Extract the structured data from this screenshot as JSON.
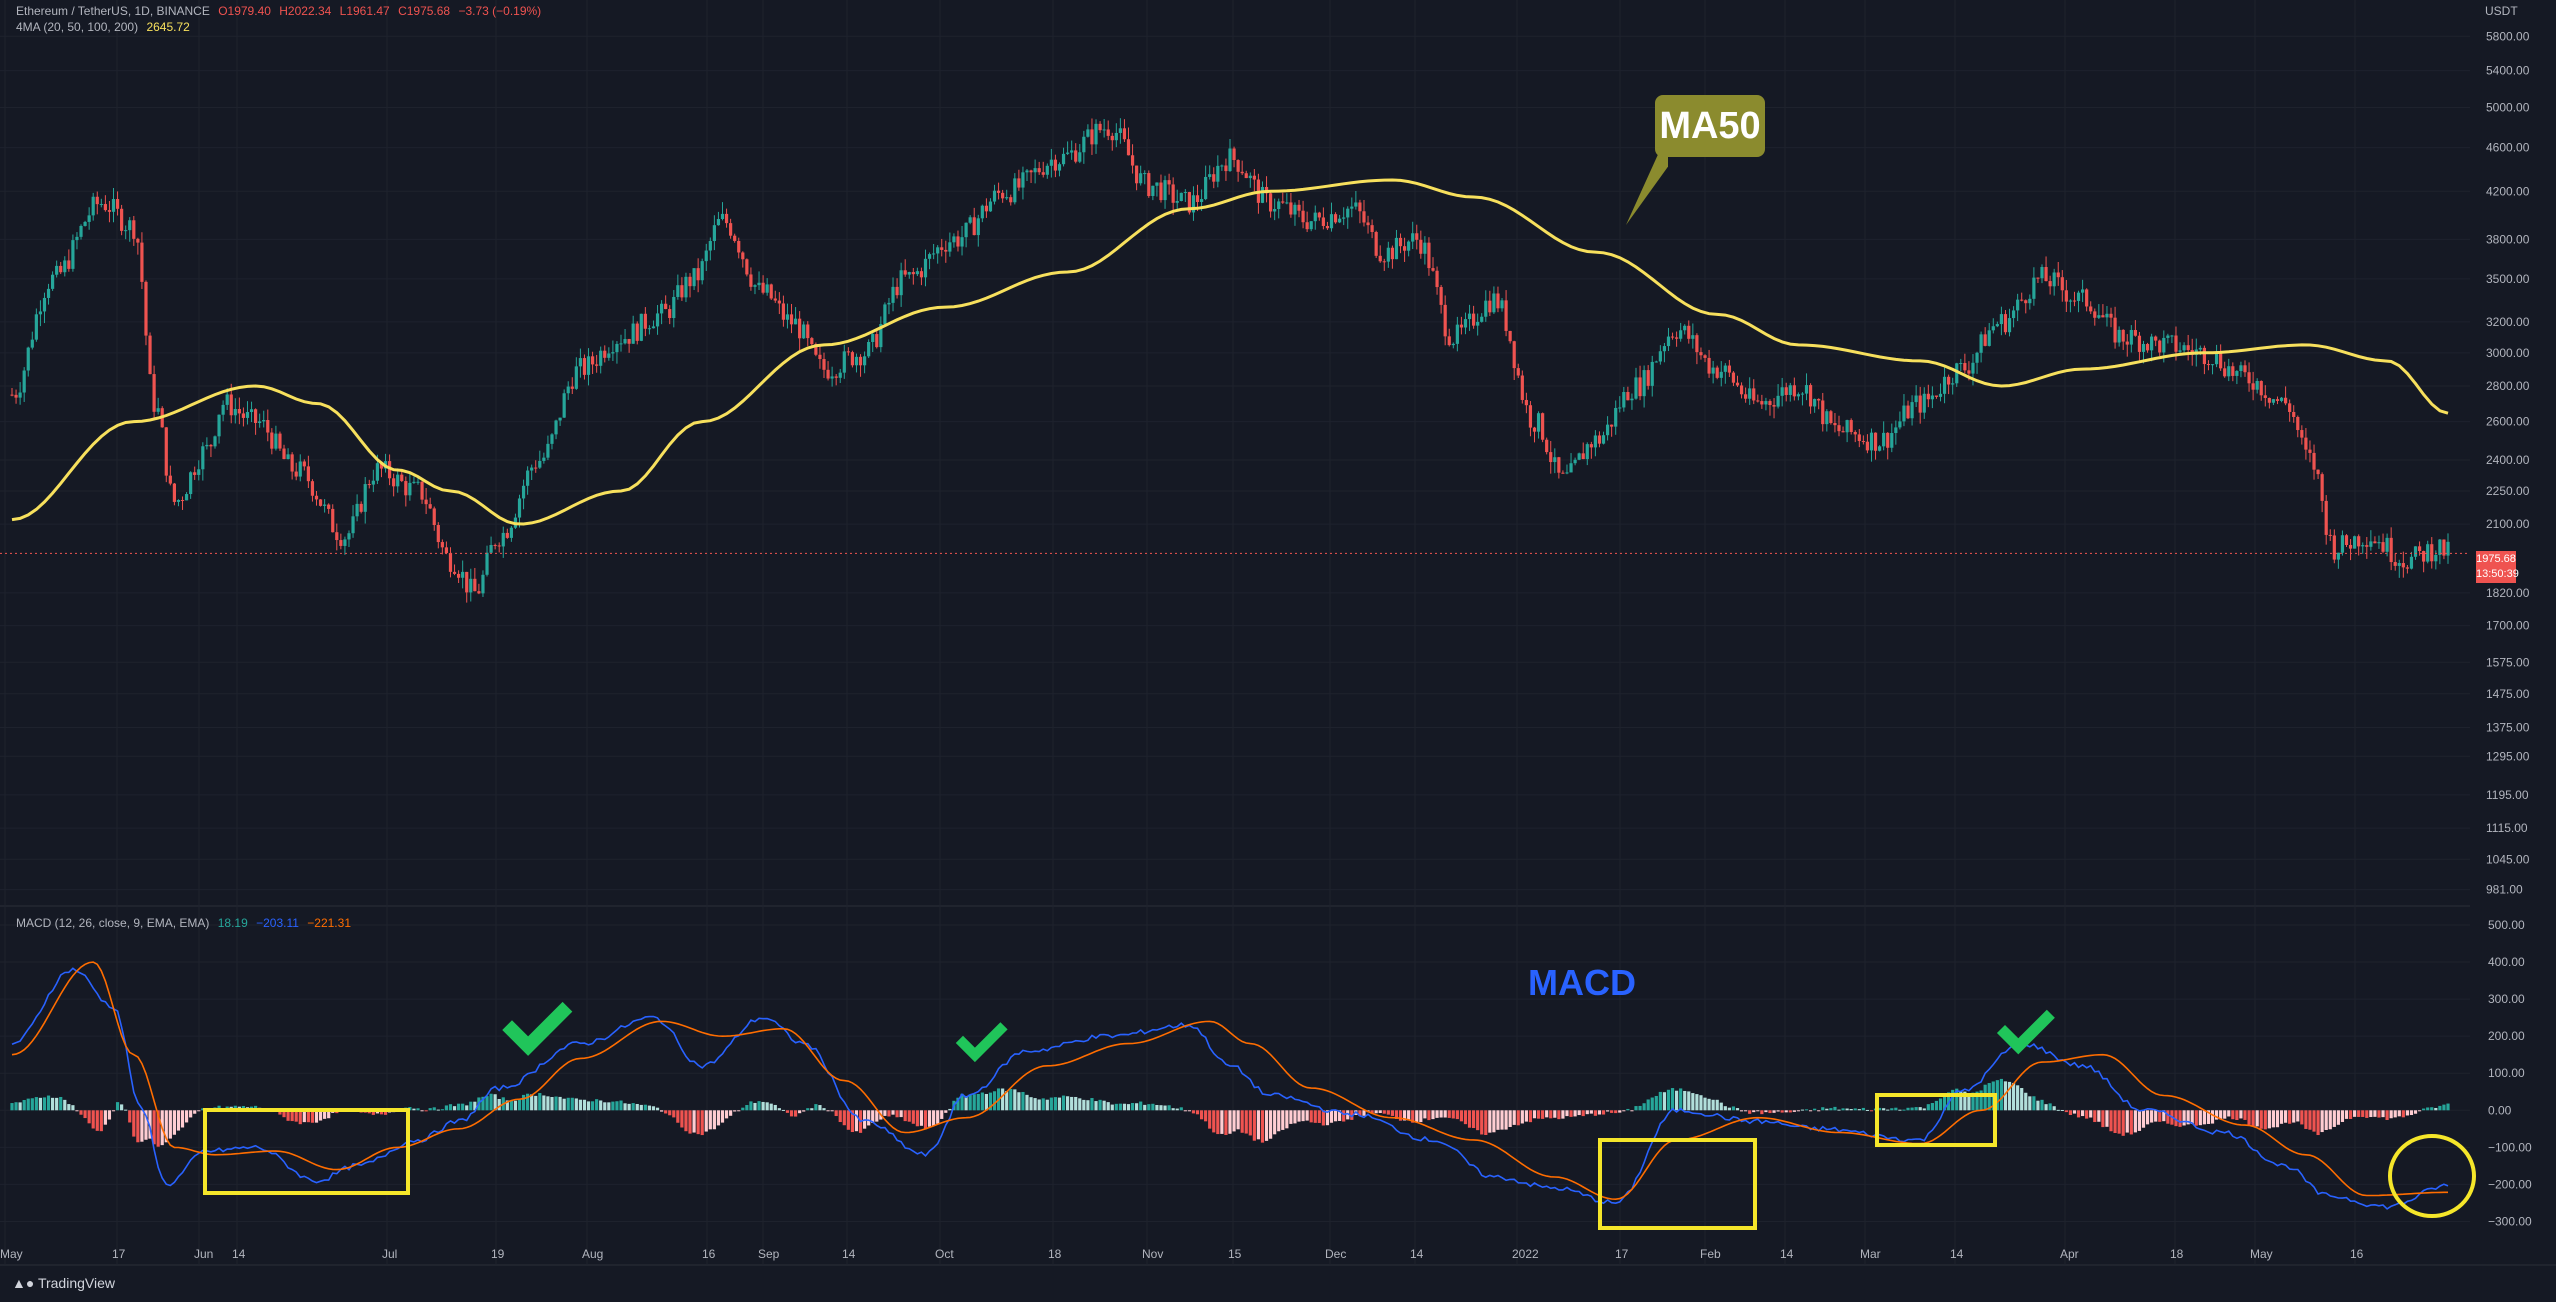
{
  "header": {
    "symbol": "Ethereum / TetherUS, 1D, BINANCE",
    "open": "O1979.40",
    "high": "H2022.34",
    "low": "L1961.47",
    "close": "C1975.68",
    "change": "−3.73 (−0.19%)",
    "ma_label": "4MA (20, 50, 100, 200)",
    "ma_value": "2645.72"
  },
  "macd_header": {
    "label": "MACD (12, 26, close, 9, EMA, EMA)",
    "hist": "18.19",
    "macd": "−203.11",
    "signal": "−221.31"
  },
  "annotations": {
    "ma50": "MA50",
    "macd": "MACD"
  },
  "price_tag": {
    "price": "1975.68",
    "countdown": "13:50:39"
  },
  "currency": "USDT",
  "brand": "TradingView",
  "colors": {
    "bg": "#151924",
    "up": "#26a69a",
    "down": "#ef5350",
    "ma": "#f7e05d",
    "macd": "#2962ff",
    "signal": "#ff6d00",
    "highlight": "#f5e62a",
    "check": "#20c55a"
  },
  "chart_data": [
    {
      "type": "candlestick",
      "title": "Ethereum / TetherUS, 1D, BINANCE",
      "scale": "log",
      "ylim": [
        960,
        6000
      ],
      "y_ticks": [
        "5800.00",
        "5400.00",
        "5000.00",
        "4600.00",
        "4200.00",
        "3800.00",
        "3500.00",
        "3200.00",
        "3000.00",
        "2800.00",
        "2600.00",
        "2400.00",
        "2250.00",
        "2100.00",
        "1820.00",
        "1700.00",
        "1575.00",
        "1475.00",
        "1375.00",
        "1295.00",
        "1195.00",
        "1115.00",
        "1045.00",
        "981.00"
      ],
      "x_ticks": [
        "May",
        "17",
        "Jun",
        "14",
        "Jul",
        "19",
        "Aug",
        "16",
        "Sep",
        "14",
        "Oct",
        "18",
        "Nov",
        "15",
        "Dec",
        "14",
        "2022",
        "17",
        "Feb",
        "14",
        "Mar",
        "14",
        "Apr",
        "18",
        "May",
        "16"
      ],
      "close_anchors": [
        [
          0,
          2750
        ],
        [
          10,
          3500
        ],
        [
          22,
          4100
        ],
        [
          30,
          3900
        ],
        [
          35,
          2700
        ],
        [
          40,
          2200
        ],
        [
          48,
          2450
        ],
        [
          52,
          2700
        ],
        [
          60,
          2600
        ],
        [
          70,
          2350
        ],
        [
          82,
          2050
        ],
        [
          90,
          2350
        ],
        [
          100,
          2250
        ],
        [
          108,
          1950
        ],
        [
          114,
          1820
        ],
        [
          120,
          2050
        ],
        [
          130,
          2400
        ],
        [
          140,
          2900
        ],
        [
          150,
          3100
        ],
        [
          160,
          3250
        ],
        [
          168,
          3500
        ],
        [
          175,
          3950
        ],
        [
          185,
          3400
        ],
        [
          192,
          3200
        ],
        [
          200,
          2900
        ],
        [
          210,
          3000
        ],
        [
          220,
          3500
        ],
        [
          232,
          3800
        ],
        [
          245,
          4200
        ],
        [
          258,
          4500
        ],
        [
          270,
          4800
        ],
        [
          280,
          4250
        ],
        [
          290,
          4100
        ],
        [
          300,
          4500
        ],
        [
          310,
          4100
        ],
        [
          320,
          3950
        ],
        [
          330,
          4050
        ],
        [
          338,
          3700
        ],
        [
          346,
          3800
        ],
        [
          355,
          3100
        ],
        [
          365,
          3350
        ],
        [
          375,
          2600
        ],
        [
          382,
          2300
        ],
        [
          390,
          2500
        ],
        [
          400,
          2800
        ],
        [
          410,
          3150
        ],
        [
          420,
          2900
        ],
        [
          430,
          2700
        ],
        [
          440,
          2800
        ],
        [
          450,
          2550
        ],
        [
          460,
          2500
        ],
        [
          470,
          2700
        ],
        [
          480,
          2900
        ],
        [
          490,
          3200
        ],
        [
          500,
          3500
        ],
        [
          510,
          3350
        ],
        [
          520,
          3100
        ],
        [
          530,
          3050
        ],
        [
          540,
          3000
        ],
        [
          550,
          2850
        ],
        [
          560,
          2700
        ],
        [
          566,
          2400
        ],
        [
          572,
          2000
        ],
        [
          580,
          2050
        ],
        [
          590,
          1950
        ],
        [
          598,
          2000
        ],
        [
          600,
          1975.68
        ]
      ],
      "ma50": {
        "name": "MA50",
        "anchors": [
          [
            0,
            2120
          ],
          [
            30,
            2600
          ],
          [
            60,
            2800
          ],
          [
            75,
            2700
          ],
          [
            95,
            2350
          ],
          [
            108,
            2250
          ],
          [
            125,
            2100
          ],
          [
            150,
            2250
          ],
          [
            170,
            2600
          ],
          [
            200,
            3050
          ],
          [
            230,
            3300
          ],
          [
            260,
            3550
          ],
          [
            290,
            4050
          ],
          [
            310,
            4200
          ],
          [
            340,
            4300
          ],
          [
            360,
            4150
          ],
          [
            390,
            3700
          ],
          [
            420,
            3250
          ],
          [
            440,
            3050
          ],
          [
            470,
            2950
          ],
          [
            490,
            2800
          ],
          [
            510,
            2900
          ],
          [
            540,
            3000
          ],
          [
            565,
            3050
          ],
          [
            585,
            2950
          ],
          [
            600,
            2645.72
          ]
        ]
      }
    },
    {
      "type": "macd",
      "title": "MACD (12, 26, close, 9, EMA, EMA)",
      "ylim": [
        -350,
        500
      ],
      "y_ticks": [
        "500.00",
        "400.00",
        "300.00",
        "200.00",
        "100.00",
        "0.00",
        "−100.00",
        "−200.00",
        "−300.00"
      ],
      "series": [
        {
          "name": "MACD",
          "anchors": [
            [
              0,
              180
            ],
            [
              15,
              380
            ],
            [
              25,
              280
            ],
            [
              32,
              0
            ],
            [
              38,
              -200
            ],
            [
              48,
              -110
            ],
            [
              60,
              -100
            ],
            [
              75,
              -190
            ],
            [
              85,
              -150
            ],
            [
              100,
              -80
            ],
            [
              110,
              -30
            ],
            [
              120,
              60
            ],
            [
              140,
              180
            ],
            [
              158,
              250
            ],
            [
              170,
              120
            ],
            [
              185,
              250
            ],
            [
              195,
              180
            ],
            [
              210,
              -30
            ],
            [
              225,
              -120
            ],
            [
              235,
              40
            ],
            [
              250,
              160
            ],
            [
              270,
              200
            ],
            [
              290,
              230
            ],
            [
              300,
              120
            ],
            [
              310,
              40
            ],
            [
              330,
              -10
            ],
            [
              350,
              -80
            ],
            [
              365,
              -180
            ],
            [
              380,
              -210
            ],
            [
              395,
              -250
            ],
            [
              410,
              0
            ],
            [
              430,
              -30
            ],
            [
              445,
              -50
            ],
            [
              470,
              -80
            ],
            [
              480,
              50
            ],
            [
              495,
              180
            ],
            [
              510,
              120
            ],
            [
              525,
              0
            ],
            [
              545,
              -60
            ],
            [
              560,
              -150
            ],
            [
              570,
              -230
            ],
            [
              585,
              -260
            ],
            [
              600,
              -203.11
            ]
          ]
        },
        {
          "name": "Signal",
          "anchors": [
            [
              0,
              150
            ],
            [
              20,
              400
            ],
            [
              30,
              150
            ],
            [
              40,
              -100
            ],
            [
              50,
              -120
            ],
            [
              65,
              -110
            ],
            [
              80,
              -160
            ],
            [
              95,
              -100
            ],
            [
              110,
              -50
            ],
            [
              125,
              30
            ],
            [
              140,
              140
            ],
            [
              160,
              240
            ],
            [
              175,
              200
            ],
            [
              190,
              220
            ],
            [
              205,
              80
            ],
            [
              220,
              -60
            ],
            [
              235,
              -20
            ],
            [
              255,
              120
            ],
            [
              275,
              180
            ],
            [
              295,
              240
            ],
            [
              305,
              180
            ],
            [
              320,
              60
            ],
            [
              340,
              -20
            ],
            [
              360,
              -80
            ],
            [
              380,
              -180
            ],
            [
              395,
              -240
            ],
            [
              410,
              -80
            ],
            [
              430,
              -20
            ],
            [
              450,
              -60
            ],
            [
              470,
              -90
            ],
            [
              485,
              0
            ],
            [
              500,
              130
            ],
            [
              515,
              150
            ],
            [
              530,
              40
            ],
            [
              550,
              -40
            ],
            [
              565,
              -120
            ],
            [
              580,
              -230
            ],
            [
              600,
              -221.31
            ]
          ]
        }
      ],
      "histogram_last": 18.19
    }
  ]
}
